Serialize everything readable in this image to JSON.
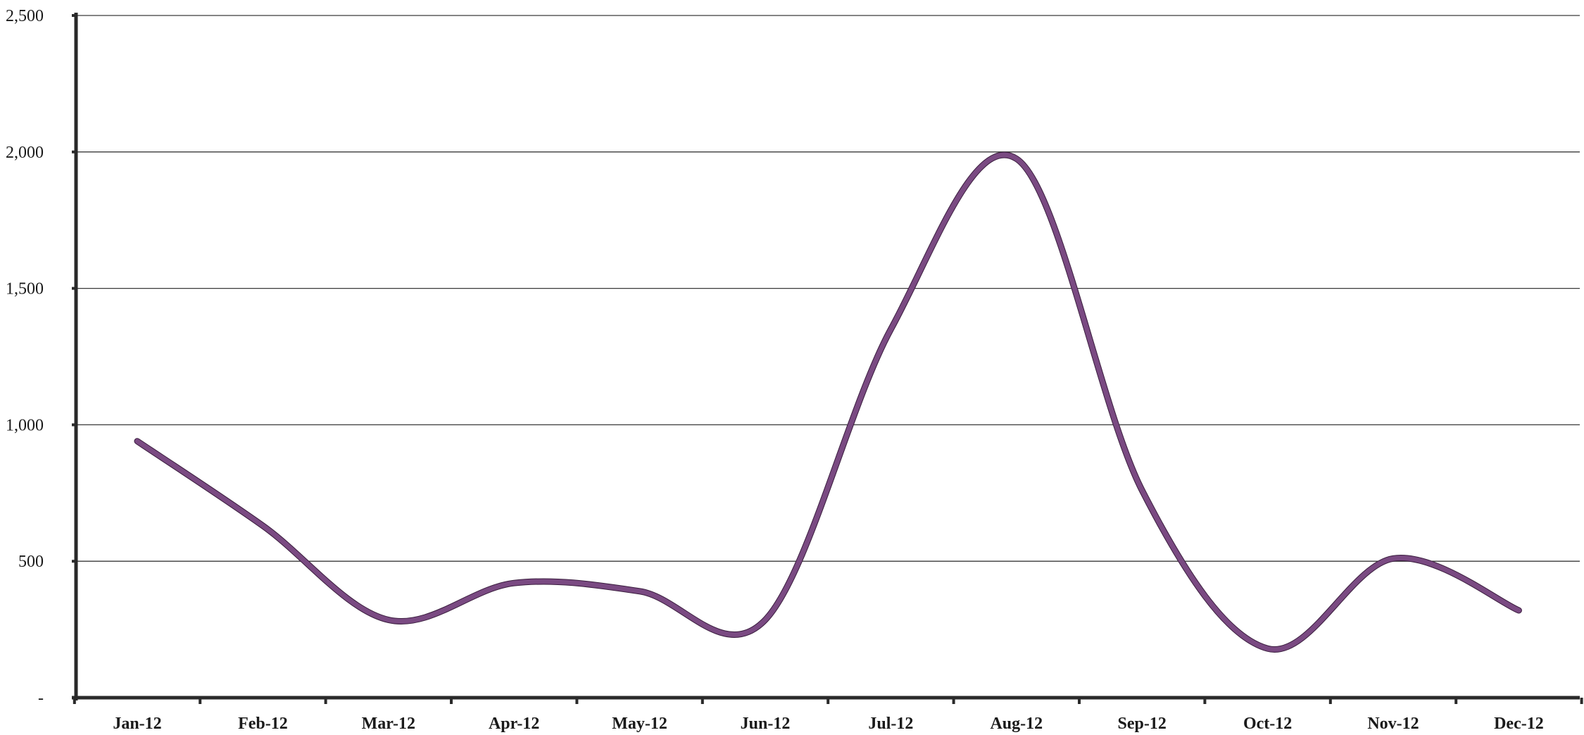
{
  "chart_data": {
    "type": "line",
    "categories": [
      "Jan-12",
      "Feb-12",
      "Mar-12",
      "Apr-12",
      "May-12",
      "Jun-12",
      "Jul-12",
      "Aug-12",
      "Sep-12",
      "Oct-12",
      "Nov-12",
      "Dec-12"
    ],
    "series": [
      {
        "values": [
          940,
          630,
          285,
          420,
          390,
          285,
          1350,
          1975,
          760,
          180,
          510,
          320
        ],
        "color": "#7a4a82"
      }
    ],
    "ylim": [
      0,
      2500
    ],
    "yticks": [
      0,
      500,
      1000,
      1500,
      2000,
      2500
    ],
    "ytick_labels": [
      "-",
      "500",
      "1,000",
      "1,500",
      "2,000",
      "2,500"
    ],
    "smooth": true,
    "grid": true,
    "legend": "none"
  }
}
